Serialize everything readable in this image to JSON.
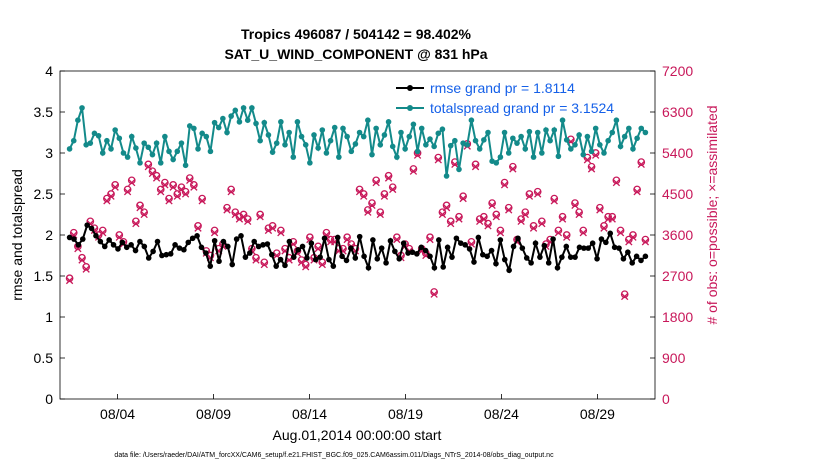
{
  "chart_data": {
    "type": "line",
    "title": "Tropics 496087 / 504142 = 98.402%",
    "subtitle": "SAT_U_WIND_COMPONENT @ 831 hPa",
    "xlabel": "Aug.01,2014 00:00:00 start",
    "ylabel": "rmse and totalspread",
    "ylabel_right": "# of obs: o=possible; ×=assimilated",
    "footnote": "data file: /Users/raeder/DAI/ATM_forcXX/CAM6_setup/f.e21.FHIST_BGC.f09_025.CAM6assim.011/Diags_NTrS_2014-08/obs_diag_output.nc",
    "xlim": [
      0.5,
      31.5
    ],
    "ylim": [
      0,
      4
    ],
    "ylim_right": [
      0,
      7200
    ],
    "x_ticks": [
      3.5,
      8.5,
      13.5,
      18.5,
      23.5,
      28.5
    ],
    "x_tick_labels": [
      "08/04",
      "08/09",
      "08/14",
      "08/19",
      "08/24",
      "08/29"
    ],
    "y_ticks_left": [
      "0",
      "0.5",
      "1",
      "1.5",
      "2",
      "2.5",
      "3",
      "3.5",
      "4"
    ],
    "y_ticks_right": [
      "0",
      "900",
      "1800",
      "2700",
      "3600",
      "4500",
      "5400",
      "6300",
      "7200"
    ],
    "colors": {
      "rmse": "#000000",
      "spread": "#138a8a",
      "obs": "#c8185a",
      "legend_text": "#1560e8"
    },
    "legend_location": "top-right",
    "series": [
      {
        "name": "rmse grand pr = 1.8114",
        "axis": "left",
        "values": [
          1.97,
          1.95,
          1.88,
          1.95,
          2.12,
          2.08,
          1.99,
          1.92,
          1.86,
          1.94,
          1.88,
          1.83,
          1.91,
          1.85,
          1.88,
          1.81,
          1.92,
          1.86,
          1.72,
          1.8,
          1.92,
          1.75,
          1.76,
          1.77,
          1.88,
          1.84,
          1.82,
          1.91,
          1.96,
          1.99,
          1.85,
          1.78,
          1.62,
          1.93,
          1.68,
          1.92,
          1.86,
          1.64,
          1.95,
          1.99,
          1.73,
          1.78,
          1.92,
          1.86,
          1.88,
          1.89,
          1.76,
          1.62,
          1.7,
          1.63,
          1.92,
          1.73,
          1.82,
          1.86,
          1.72,
          1.9,
          1.7,
          1.73,
          1.96,
          1.7,
          1.62,
          1.97,
          1.74,
          1.69,
          1.84,
          1.72,
          1.98,
          1.74,
          1.6,
          1.94,
          1.71,
          1.84,
          1.66,
          1.93,
          1.8,
          1.71,
          1.9,
          1.78,
          1.79,
          1.77,
          1.85,
          1.81,
          1.74,
          1.6,
          1.94,
          1.61,
          1.85,
          1.73,
          1.96,
          1.9,
          1.88,
          1.83,
          1.67,
          1.97,
          1.76,
          1.74,
          1.81,
          1.65,
          1.94,
          1.7,
          1.57,
          1.86,
          1.96,
          1.84,
          1.72,
          1.66,
          1.9,
          1.73,
          1.87,
          1.66,
          1.95,
          1.6,
          1.73,
          1.86,
          1.73,
          1.73,
          1.85,
          1.84,
          1.84,
          1.9,
          1.71,
          1.95,
          1.91,
          2.02,
          1.85,
          1.84,
          1.71,
          1.79,
          1.66,
          1.74,
          1.69,
          1.74
        ]
      },
      {
        "name": "totalspread grand pr = 3.1524",
        "axis": "left",
        "values": [
          3.05,
          3.15,
          3.4,
          3.55,
          3.1,
          3.12,
          3.24,
          3.21,
          3.0,
          3.15,
          3.05,
          3.28,
          3.18,
          3.0,
          2.95,
          3.2,
          3.06,
          2.88,
          3.12,
          3.07,
          2.98,
          3.12,
          2.88,
          3.2,
          3.02,
          2.92,
          3.02,
          3.12,
          2.85,
          3.33,
          3.3,
          3.05,
          3.24,
          3.2,
          3.02,
          3.37,
          3.31,
          3.42,
          3.25,
          3.45,
          3.52,
          3.38,
          3.55,
          3.4,
          3.55,
          3.36,
          3.15,
          3.37,
          3.22,
          3.01,
          3.12,
          3.38,
          3.1,
          3.25,
          2.95,
          3.38,
          3.2,
          3.1,
          2.88,
          3.22,
          3.06,
          3.28,
          3.0,
          3.15,
          3.31,
          2.95,
          3.3,
          3.2,
          3.02,
          3.11,
          3.25,
          3.2,
          3.4,
          2.98,
          3.3,
          3.1,
          3.22,
          3.38,
          3.08,
          2.95,
          3.25,
          3.05,
          3.2,
          3.35,
          3.02,
          3.3,
          3.1,
          3.17,
          3.08,
          3.24,
          3.29,
          2.72,
          3.09,
          3.15,
          2.8,
          3.12,
          3.1,
          3.4,
          3.15,
          3.05,
          3.16,
          3.25,
          2.9,
          2.88,
          2.95,
          3.25,
          3.0,
          3.18,
          3.12,
          3.2,
          3.05,
          3.26,
          2.95,
          3.25,
          3.0,
          3.28,
          3.15,
          3.28,
          2.96,
          3.4,
          3.16,
          3.05,
          3.1,
          3.22,
          2.98,
          3.2,
          3.02,
          3.3,
          3.1,
          3.0,
          3.15,
          3.25,
          3.4,
          3.08,
          3.2,
          3.3,
          3.05,
          3.18,
          3.3,
          3.25
        ]
      },
      {
        "name": "# of obs possible",
        "axis": "right",
        "marker": "circle",
        "values": [
          2650,
          3650,
          3350,
          3100,
          2900,
          3900,
          3750,
          3600,
          3700,
          4400,
          4500,
          4700,
          3600,
          3450,
          4600,
          4800,
          3900,
          4250,
          4100,
          5150,
          5000,
          4900,
          4600,
          4750,
          4400,
          4700,
          4500,
          4650,
          4550,
          4850,
          4700,
          3800,
          4400,
          3250,
          3150,
          3700,
          3300,
          3400,
          4200,
          4600,
          4100,
          4000,
          4050,
          3950,
          3300,
          3100,
          4050,
          3000,
          3750,
          3800,
          3200,
          3700,
          3300,
          3100,
          3450,
          3250,
          3050,
          2950,
          3550,
          3100,
          3350,
          3000,
          3650,
          3500,
          3500,
          3300,
          3300,
          3550,
          3400,
          3300,
          4600,
          4500,
          4150,
          4300,
          4800,
          4100,
          4500,
          4900,
          4650,
          3550,
          3150,
          3400,
          3300,
          5050,
          5400,
          3300,
          3200,
          3550,
          2350,
          5300,
          4100,
          4250,
          3900,
          5200,
          4000,
          4450,
          5600,
          3450,
          5150,
          3950,
          4000,
          3850,
          4300,
          4050,
          3700,
          4750,
          4200,
          5100,
          3500,
          3950,
          4100,
          4500,
          3800,
          4550,
          3900,
          3400,
          3500,
          4400,
          3700,
          4000,
          3600,
          5700,
          4300,
          4100,
          3700,
          5300,
          5100,
          5400,
          4200,
          3800,
          4000,
          4000,
          4800,
          3700,
          2300,
          3500,
          3600,
          4600,
          5200,
          3500
        ]
      },
      {
        "name": "# of obs assimilated",
        "axis": "right",
        "marker": "x",
        "values": [
          2600,
          3600,
          3300,
          3050,
          2850,
          3850,
          3700,
          3550,
          3650,
          4350,
          4450,
          4650,
          3550,
          3400,
          4550,
          4750,
          3850,
          4200,
          4050,
          5100,
          4950,
          4850,
          4550,
          4700,
          4350,
          4650,
          4450,
          4600,
          4500,
          4800,
          4650,
          3750,
          4350,
          3200,
          3100,
          3650,
          3250,
          3350,
          4150,
          4550,
          4050,
          3950,
          4000,
          3900,
          3250,
          3050,
          4000,
          2950,
          3700,
          3750,
          3150,
          3650,
          3250,
          3050,
          3400,
          3200,
          3000,
          2900,
          3500,
          3050,
          3300,
          2950,
          3600,
          3450,
          3450,
          3250,
          3250,
          3500,
          3350,
          3250,
          4550,
          4450,
          4100,
          4250,
          4750,
          4050,
          4450,
          4850,
          4600,
          3500,
          3100,
          3350,
          3250,
          5000,
          5350,
          3250,
          3150,
          3500,
          2300,
          5250,
          4050,
          4200,
          3850,
          5150,
          3950,
          4400,
          5550,
          3400,
          5100,
          3900,
          3950,
          3800,
          4250,
          4000,
          3650,
          4700,
          4150,
          5050,
          3450,
          3900,
          4050,
          4450,
          3750,
          4500,
          3850,
          3350,
          3450,
          4350,
          3650,
          3950,
          3550,
          5650,
          4250,
          4050,
          3650,
          5250,
          5050,
          5350,
          4150,
          3750,
          3950,
          3950,
          4750,
          3650,
          2250,
          3450,
          3550,
          4550,
          5150,
          3450
        ]
      }
    ]
  }
}
